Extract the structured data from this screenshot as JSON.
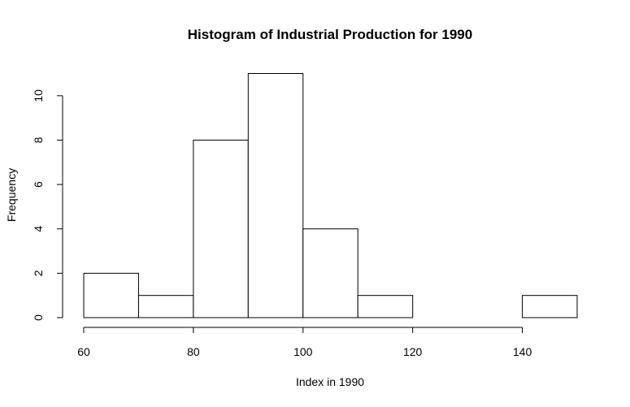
{
  "chart_data": {
    "type": "bar",
    "title": "Histogram of Industrial Production for 1990",
    "xlabel": "Index in 1990",
    "ylabel": "Frequency",
    "bins": [
      {
        "from": 60,
        "to": 70,
        "count": 2
      },
      {
        "from": 70,
        "to": 80,
        "count": 1
      },
      {
        "from": 80,
        "to": 90,
        "count": 8
      },
      {
        "from": 90,
        "to": 100,
        "count": 11
      },
      {
        "from": 100,
        "to": 110,
        "count": 4
      },
      {
        "from": 110,
        "to": 120,
        "count": 1
      },
      {
        "from": 120,
        "to": 130,
        "count": 0
      },
      {
        "from": 130,
        "to": 140,
        "count": 0
      },
      {
        "from": 140,
        "to": 150,
        "count": 1
      }
    ],
    "xlim": [
      60,
      150
    ],
    "ylim": [
      0,
      11
    ],
    "x_ticks": [
      60,
      80,
      100,
      120,
      140
    ],
    "y_ticks": [
      0,
      2,
      4,
      6,
      8,
      10
    ],
    "grid": false,
    "legend": "none",
    "colors": {
      "bar_fill": "#ffffff",
      "bar_stroke": "#000000"
    }
  }
}
